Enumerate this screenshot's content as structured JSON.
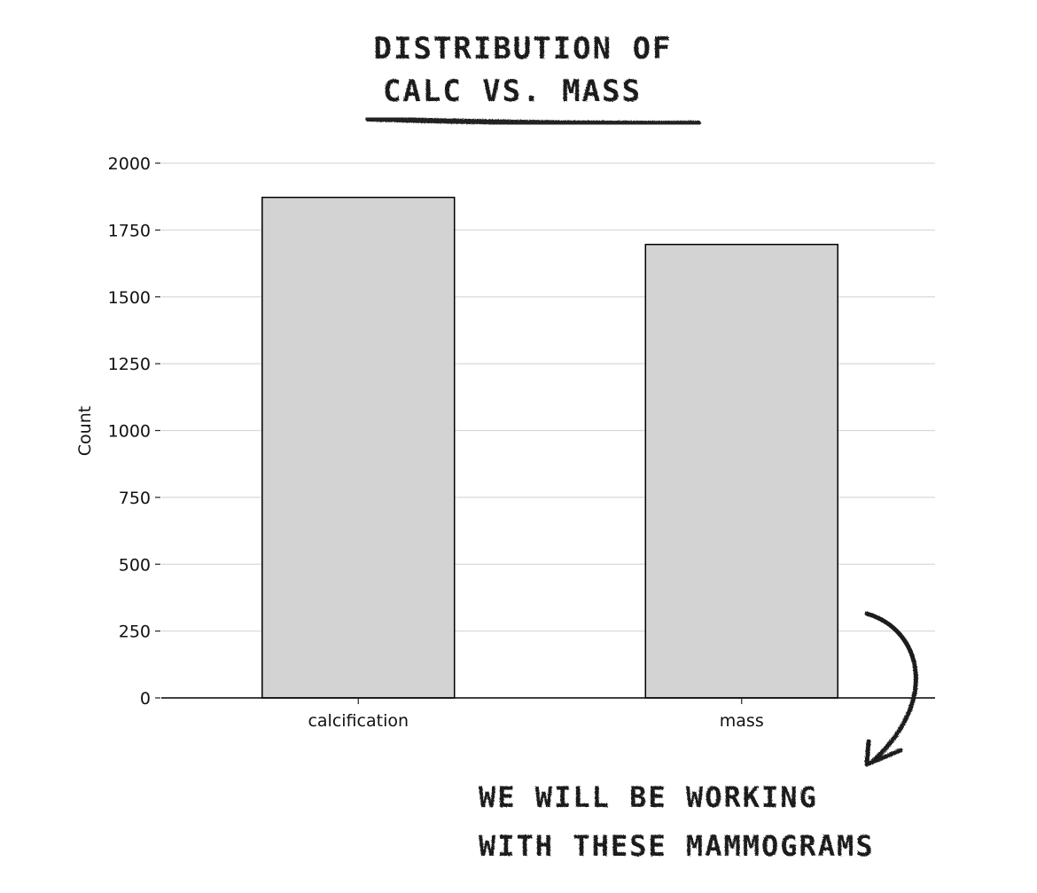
{
  "chart_data": {
    "type": "bar",
    "title_lines": [
      "DISTRIBUTION OF",
      "CALC VS. MASS"
    ],
    "xlabel": "",
    "ylabel": "Count",
    "categories": [
      "calcification",
      "mass"
    ],
    "values": [
      1872,
      1696
    ],
    "ylim": [
      0,
      2000
    ],
    "yticks": [
      0,
      250,
      500,
      750,
      1000,
      1250,
      1500,
      1750,
      2000
    ],
    "grid": "horizontal",
    "bar_color": "#d3d3d3",
    "bar_edge_color": "#000000",
    "annotation": {
      "lines": [
        "WE WILL BE WORKING",
        "WITH THESE MAMMOGRAMS"
      ],
      "points_to": "mass"
    }
  }
}
